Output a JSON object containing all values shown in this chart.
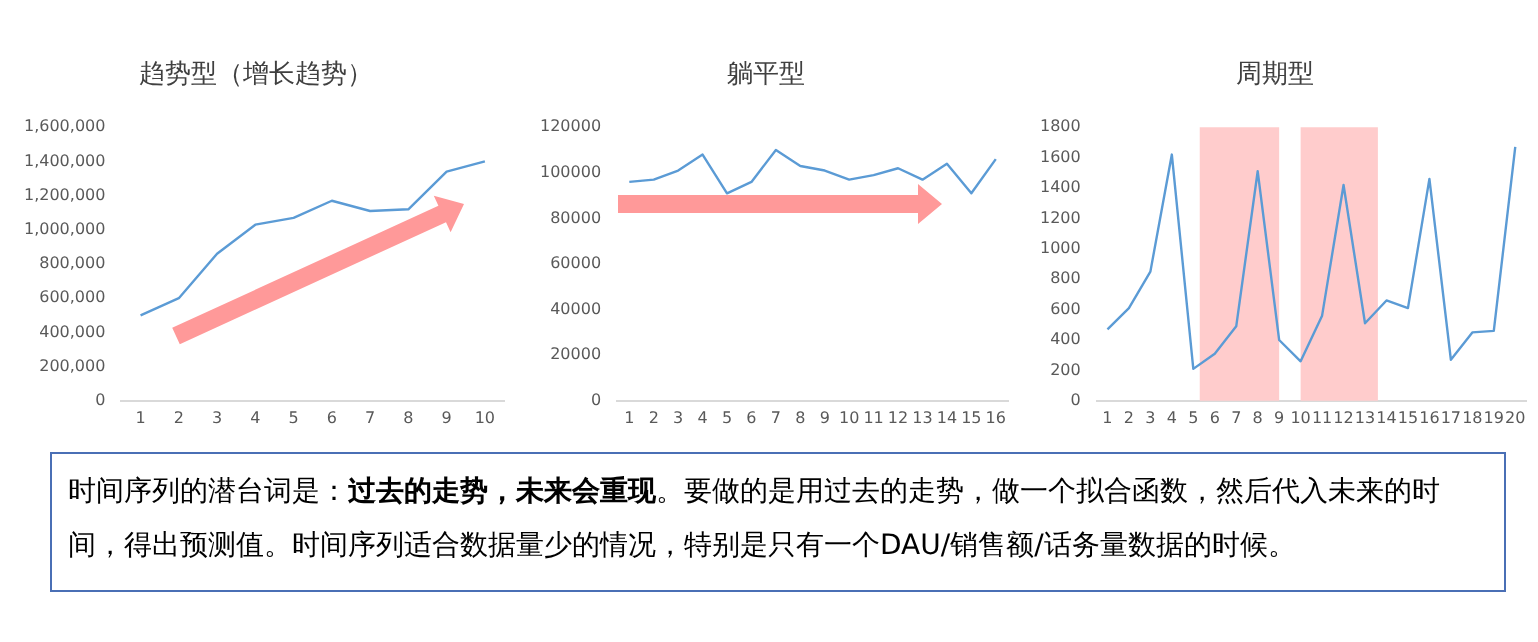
{
  "chart_data": [
    {
      "type": "line",
      "title": "趋势型（增长趋势）",
      "x": [
        1,
        2,
        3,
        4,
        5,
        6,
        7,
        8,
        9,
        10
      ],
      "values": [
        500000,
        600000,
        860000,
        1030000,
        1070000,
        1170000,
        1110000,
        1120000,
        1340000,
        1400000
      ],
      "color": "#5b9bd5",
      "marker": "none",
      "xlim": [
        0.5,
        10.5
      ],
      "xticks": [
        1,
        2,
        3,
        4,
        5,
        6,
        7,
        8,
        9,
        10
      ],
      "ylim": [
        0,
        1600000
      ],
      "yticks": [
        {
          "value": 0,
          "label": "0"
        },
        {
          "value": 200000,
          "label": "200,000"
        },
        {
          "value": 400000,
          "label": "400,000"
        },
        {
          "value": 600000,
          "label": "600,000"
        },
        {
          "value": 800000,
          "label": "800,000"
        },
        {
          "value": 1000000,
          "label": "1,000,000"
        },
        {
          "value": 1200000,
          "label": "1,200,000"
        },
        {
          "value": 1400000,
          "label": "1,400,000"
        },
        {
          "value": 1600000,
          "label": "1,600,000"
        }
      ]
    },
    {
      "type": "line",
      "title": "躺平型",
      "x": [
        1,
        2,
        3,
        4,
        5,
        6,
        7,
        8,
        9,
        10,
        11,
        12,
        13,
        14,
        15,
        16
      ],
      "values": [
        96000,
        97000,
        101000,
        108000,
        91000,
        96000,
        110000,
        103000,
        101000,
        97000,
        99000,
        102000,
        97000,
        104000,
        91000,
        106000
      ],
      "color": "#5b9bd5",
      "marker": "none",
      "xlim": [
        0.5,
        16.5
      ],
      "xticks": [
        1,
        2,
        3,
        4,
        5,
        6,
        7,
        8,
        9,
        10,
        11,
        12,
        13,
        14,
        15,
        16
      ],
      "ylim": [
        0,
        120000
      ],
      "yticks": [
        0,
        20000,
        40000,
        60000,
        80000,
        100000,
        120000
      ]
    },
    {
      "type": "line",
      "title": "周期型",
      "x": [
        1,
        2,
        3,
        4,
        5,
        6,
        7,
        8,
        9,
        10,
        11,
        12,
        13,
        14,
        15,
        16,
        17,
        18,
        19,
        20
      ],
      "values": [
        470,
        610,
        850,
        1620,
        210,
        310,
        490,
        1510,
        400,
        260,
        560,
        1420,
        510,
        660,
        610,
        1460,
        270,
        450,
        460,
        1670
      ],
      "color": "#5b9bd5",
      "marker": "none",
      "xlim": [
        0.5,
        20.5
      ],
      "xticks": [
        1,
        2,
        3,
        4,
        5,
        6,
        7,
        8,
        9,
        10,
        11,
        12,
        13,
        14,
        15,
        16,
        17,
        18,
        19,
        20
      ],
      "ylim": [
        0,
        1800
      ],
      "yticks": [
        0,
        200,
        400,
        600,
        800,
        1000,
        1200,
        1400,
        1600,
        1800
      ],
      "bands": [
        {
          "axis": "x",
          "from": 5.3,
          "to": 9.0,
          "color": "#ffcccc"
        },
        {
          "axis": "x",
          "from": 10.0,
          "to": 13.6,
          "color": "#ffcccc"
        }
      ]
    },
    {
      "type": "other",
      "annotations": [
        "时间序列的潜台词是：",
        "过去的走势，未来会重现",
        "。要做的是用过去的走势，做一个拟合函数，然后代入未来的时间，得出预测值。时间序列适合数据量少的情况，特别是只有一个DAU/销售额/话务量数据的时候。"
      ]
    }
  ]
}
